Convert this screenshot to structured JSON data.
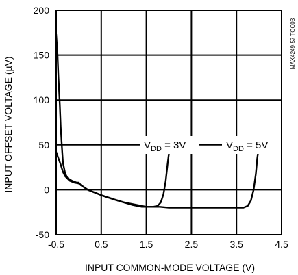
{
  "chart_data": {
    "type": "line",
    "title": "",
    "xlabel": "INPUT COMMON-MODE VOLTAGE (V)",
    "ylabel": "INPUT OFFSET VOLTAGE (µV)",
    "xlim": [
      -0.5,
      4.5
    ],
    "ylim": [
      -50,
      200
    ],
    "xticks": [
      "-0.5",
      "0.5",
      "1.5",
      "2.5",
      "3.5",
      "4.5"
    ],
    "yticks": [
      "-50",
      "0",
      "50",
      "100",
      "150",
      "200"
    ],
    "grid": true,
    "legend": "none",
    "side_note": "MAX4249-57 TOC03",
    "annotations": [
      {
        "main": "V",
        "sub": "DD",
        "rest": " = 3V"
      },
      {
        "main": "V",
        "sub": "DD",
        "rest": " = 5V"
      }
    ],
    "series": [
      {
        "x": [
          -0.5,
          -0.47,
          -0.45,
          -0.42,
          -0.4,
          -0.37,
          -0.35,
          -0.3,
          -0.25,
          -0.15,
          -0.05,
          0.0,
          0.05,
          0.2,
          0.5,
          0.8,
          1.0,
          1.2,
          1.4,
          1.55,
          1.65,
          1.75,
          1.82,
          1.88,
          1.93,
          1.97,
          2.0,
          2.02
        ],
        "y": [
          173,
          150,
          125,
          95,
          70,
          45,
          30,
          18,
          13,
          10,
          8,
          8,
          5,
          0,
          -6,
          -11,
          -14,
          -17,
          -19,
          -19,
          -19,
          -18,
          -14,
          -5,
          10,
          28,
          40,
          45
        ]
      },
      {
        "x": [
          -0.5,
          -0.45,
          -0.4,
          -0.35,
          -0.3,
          -0.2,
          -0.1,
          0.0,
          0.05,
          0.2,
          0.5,
          0.8,
          1.0,
          1.3,
          1.5,
          1.7,
          1.8,
          2.0,
          2.5,
          3.0,
          3.5,
          3.65,
          3.75,
          3.82,
          3.88,
          3.93,
          3.96,
          3.98
        ],
        "y": [
          42,
          35,
          28,
          20,
          15,
          10,
          8,
          7,
          5,
          0,
          -6,
          -11,
          -14,
          -17,
          -19,
          -19,
          -19,
          -20,
          -20,
          -20,
          -20,
          -20,
          -18,
          -12,
          0,
          18,
          35,
          42
        ]
      }
    ]
  }
}
